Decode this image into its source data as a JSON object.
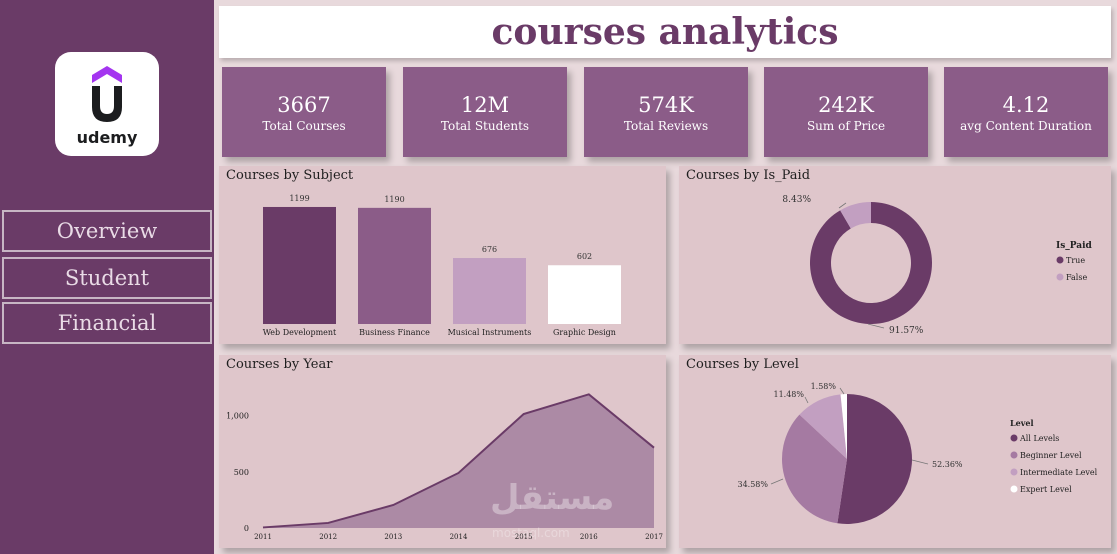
{
  "logo": {
    "text": "udemy"
  },
  "nav": [
    {
      "label": "Overview"
    },
    {
      "label": "Student"
    },
    {
      "label": "Financial"
    }
  ],
  "title": "courses analytics",
  "kpis": [
    {
      "value": "3667",
      "label": "Total Courses"
    },
    {
      "value": "12M",
      "label": "Total Students"
    },
    {
      "value": "574K",
      "label": "Total Reviews"
    },
    {
      "value": "242K",
      "label": "Sum of Price"
    },
    {
      "value": "4.12",
      "label": "avg Content Duration"
    }
  ],
  "colors": {
    "sidebar": "#6a3b67",
    "kpi_bg": "#8b5c88",
    "panel_bg": "#dfc6cb",
    "dark": "#6a3b67",
    "medium": "#8b5c88",
    "light": "#c29fc1",
    "white": "#ffffff"
  },
  "panels": {
    "subject": {
      "title": "Courses by Subject"
    },
    "paid": {
      "title": "Courses by Is_Paid",
      "legend_title": "Is_Paid"
    },
    "year": {
      "title": "Courses by Year"
    },
    "level": {
      "title": "Courses by Level",
      "legend_title": "Level"
    }
  },
  "watermark": {
    "text": "مستقل",
    "sub": "mostaql.com"
  },
  "chart_data": [
    {
      "type": "bar",
      "title": "Courses by Subject",
      "categories": [
        "Web Development",
        "Business Finance",
        "Musical Instruments",
        "Graphic Design"
      ],
      "values": [
        1199,
        1190,
        676,
        602
      ],
      "colors": [
        "#6a3b67",
        "#8b5c88",
        "#c29fc1",
        "#ffffff"
      ],
      "ylim": [
        0,
        1250
      ]
    },
    {
      "type": "pie",
      "title": "Courses by Is_Paid",
      "donut": true,
      "labels": [
        "True",
        "False"
      ],
      "values": [
        91.57,
        8.43
      ],
      "value_labels": [
        "91.57%",
        "8.43%"
      ],
      "colors": [
        "#6a3b67",
        "#c29fc1"
      ],
      "legend": "right"
    },
    {
      "type": "area",
      "title": "Courses by Year",
      "x": [
        "2011",
        "2012",
        "2013",
        "2014",
        "2015",
        "2016",
        "2017"
      ],
      "values": [
        5,
        45,
        205,
        490,
        1015,
        1190,
        715
      ],
      "yticks": [
        "0",
        "500",
        "1,000"
      ],
      "ylim": [
        0,
        1300
      ]
    },
    {
      "type": "pie",
      "title": "Courses by Level",
      "labels": [
        "All Levels",
        "Beginner Level",
        "Intermediate Level",
        "Expert Level"
      ],
      "values": [
        52.36,
        34.58,
        11.48,
        1.58
      ],
      "value_labels": [
        "52.36%",
        "34.58%",
        "11.48%",
        "1.58%"
      ],
      "colors": [
        "#6a3b67",
        "#a57aa2",
        "#c29fc1",
        "#ffffff"
      ],
      "legend": "right"
    }
  ]
}
